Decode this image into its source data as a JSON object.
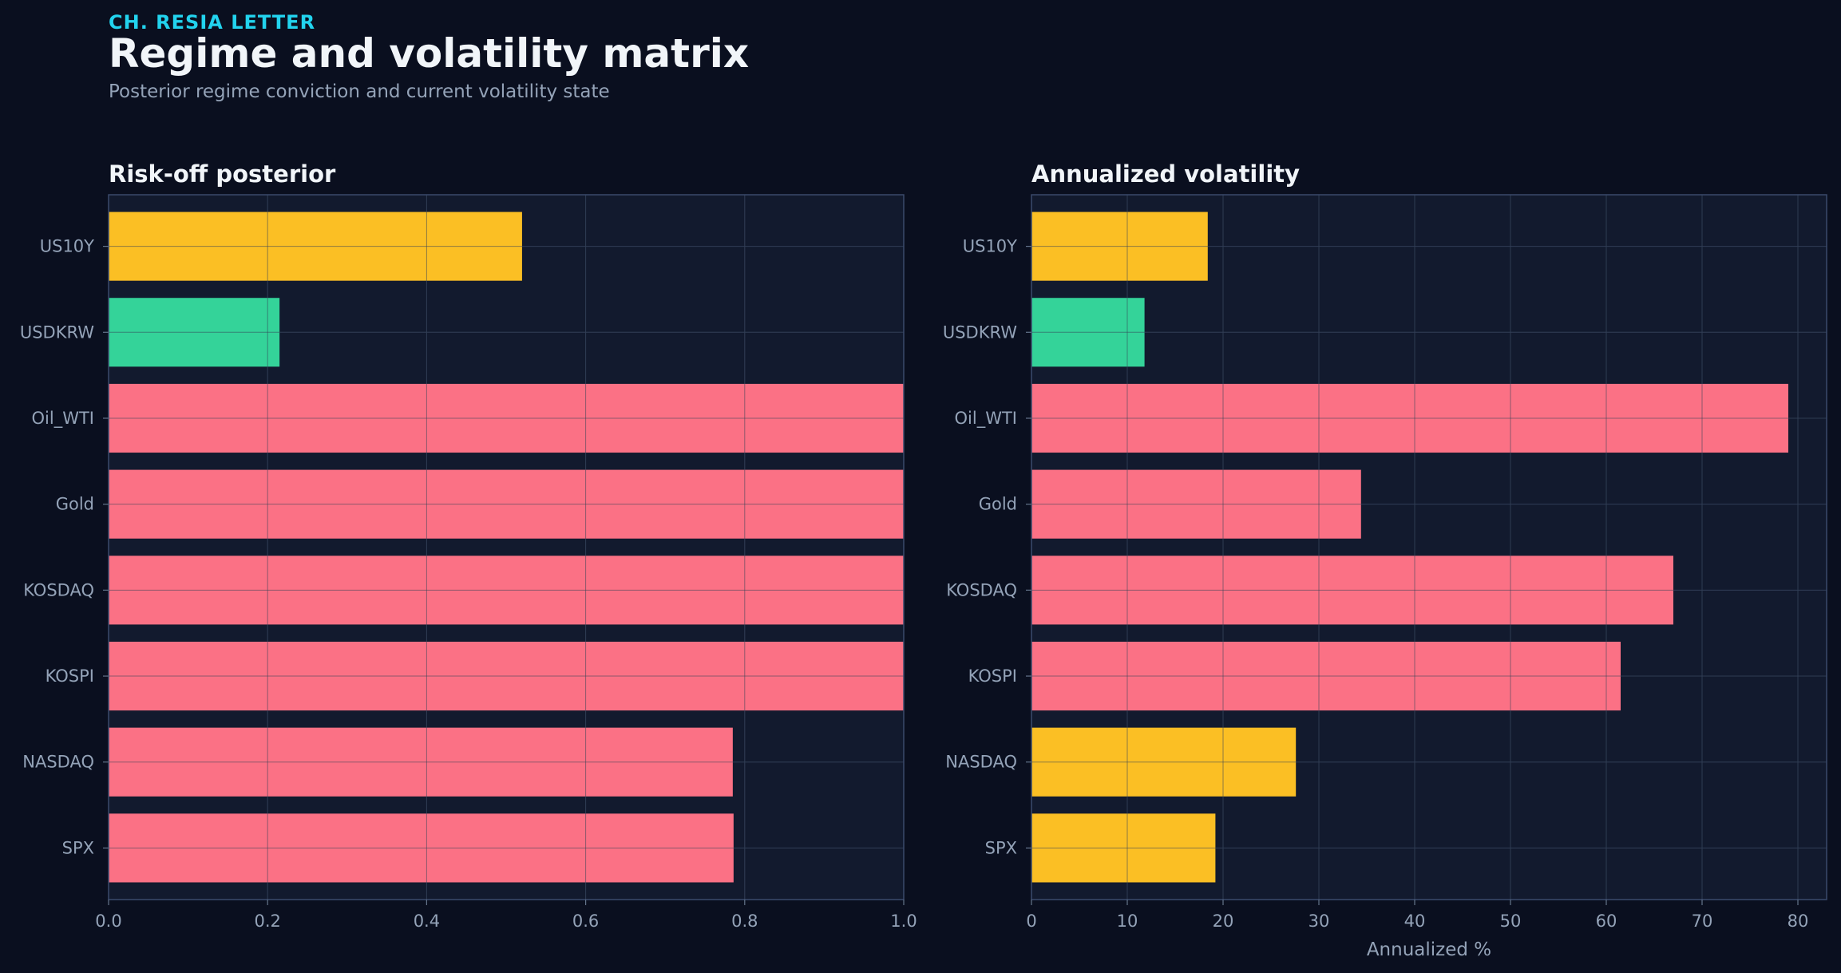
{
  "header": {
    "kicker": "CH. RESIA LETTER",
    "title": "Regime and volatility matrix",
    "subtitle": "Posterior regime conviction and current volatility state"
  },
  "colors": {
    "background": "#0a0f1f",
    "panel": "#121a2e",
    "risk_off": "#fb7185",
    "neutral": "#fbbf24",
    "risk_on": "#34d399"
  },
  "chart_data": [
    {
      "type": "bar",
      "orientation": "horizontal",
      "title": "Risk-off posterior",
      "xlabel": "",
      "ylabel": "",
      "categories": [
        "US10Y",
        "USDKRW",
        "Oil_WTI",
        "Gold",
        "KOSDAQ",
        "KOSPI",
        "NASDAQ",
        "SPX"
      ],
      "values": [
        0.52,
        0.215,
        1.0,
        1.0,
        1.0,
        1.0,
        0.785,
        0.786
      ],
      "bar_colors": [
        "#fbbf24",
        "#34d399",
        "#fb7185",
        "#fb7185",
        "#fb7185",
        "#fb7185",
        "#fb7185",
        "#fb7185"
      ],
      "xlim": [
        0,
        1.0
      ],
      "xticks": [
        0.0,
        0.2,
        0.4,
        0.6,
        0.8,
        1.0
      ],
      "xtick_labels": [
        "0.0",
        "0.2",
        "0.4",
        "0.6",
        "0.8",
        "1.0"
      ],
      "grid": true
    },
    {
      "type": "bar",
      "orientation": "horizontal",
      "title": "Annualized volatility",
      "xlabel": "Annualized %",
      "ylabel": "",
      "categories": [
        "US10Y",
        "USDKRW",
        "Oil_WTI",
        "Gold",
        "KOSDAQ",
        "KOSPI",
        "NASDAQ",
        "SPX"
      ],
      "values": [
        18.4,
        11.8,
        79.0,
        34.4,
        67.0,
        61.5,
        27.6,
        19.2
      ],
      "bar_colors": [
        "#fbbf24",
        "#34d399",
        "#fb7185",
        "#fb7185",
        "#fb7185",
        "#fb7185",
        "#fbbf24",
        "#fbbf24"
      ],
      "xlim": [
        0,
        83
      ],
      "xticks": [
        0,
        10,
        20,
        30,
        40,
        50,
        60,
        70,
        80
      ],
      "xtick_labels": [
        "0",
        "10",
        "20",
        "30",
        "40",
        "50",
        "60",
        "70",
        "80"
      ],
      "grid": true
    }
  ]
}
